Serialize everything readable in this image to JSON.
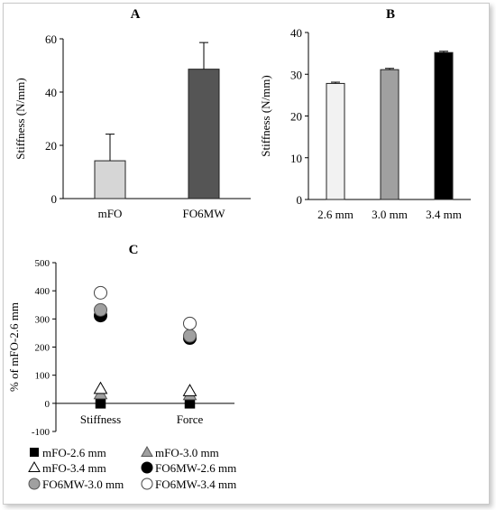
{
  "chart_data": [
    {
      "id": "A",
      "type": "bar",
      "title": "A",
      "ylabel": "Stiffness (N/mm)",
      "xlabel": "",
      "ylim": [
        0,
        60
      ],
      "yticks": [
        0,
        20,
        40,
        60
      ],
      "categories": [
        "mFO",
        "FO6MW"
      ],
      "values": [
        14.2,
        48.6
      ],
      "errors": [
        10.0,
        10.0
      ],
      "colors": [
        "#d6d6d6",
        "#555555"
      ]
    },
    {
      "id": "B",
      "type": "bar",
      "title": "B",
      "ylabel": "Stiffness (N/mm)",
      "xlabel": "",
      "ylim": [
        0,
        40
      ],
      "yticks": [
        0,
        10,
        20,
        30,
        40
      ],
      "categories": [
        "2.6 mm",
        "3.0 mm",
        "3.4 mm"
      ],
      "values": [
        27.8,
        31.1,
        35.2
      ],
      "errors": [
        0.3,
        0.3,
        0.3
      ],
      "colors": [
        "#f2f2f2",
        "#a0a0a0",
        "#000000"
      ]
    },
    {
      "id": "C",
      "type": "scatter",
      "title": "C",
      "ylabel": "% of mFO-2.6 mm",
      "xlabel": "",
      "ylim": [
        -100,
        500
      ],
      "yticks": [
        -100,
        0,
        100,
        200,
        300,
        400,
        500
      ],
      "categories": [
        "Stiffness",
        "Force"
      ],
      "legend_placement": "bottom",
      "series": [
        {
          "name": "mFO-2.6 mm",
          "marker": "square",
          "fill": "#000000",
          "stroke": "#000000",
          "values": [
            0,
            0
          ]
        },
        {
          "name": "mFO-3.0 mm",
          "marker": "triangle",
          "fill": "#a0a0a0",
          "stroke": "#555555",
          "values": [
            33,
            30
          ]
        },
        {
          "name": "mFO-3.4 mm",
          "marker": "triangle",
          "fill": "#ffffff",
          "stroke": "#000000",
          "values": [
            52,
            44
          ]
        },
        {
          "name": "FO6MW-2.6 mm",
          "marker": "circle",
          "fill": "#000000",
          "stroke": "#000000",
          "values": [
            312,
            232
          ]
        },
        {
          "name": "FO6MW-3.0 mm",
          "marker": "circle",
          "fill": "#a0a0a0",
          "stroke": "#555555",
          "values": [
            332,
            240
          ]
        },
        {
          "name": "FO6MW-3.4 mm",
          "marker": "circle",
          "fill": "#ffffff",
          "stroke": "#444444",
          "values": [
            393,
            284
          ]
        }
      ]
    }
  ]
}
